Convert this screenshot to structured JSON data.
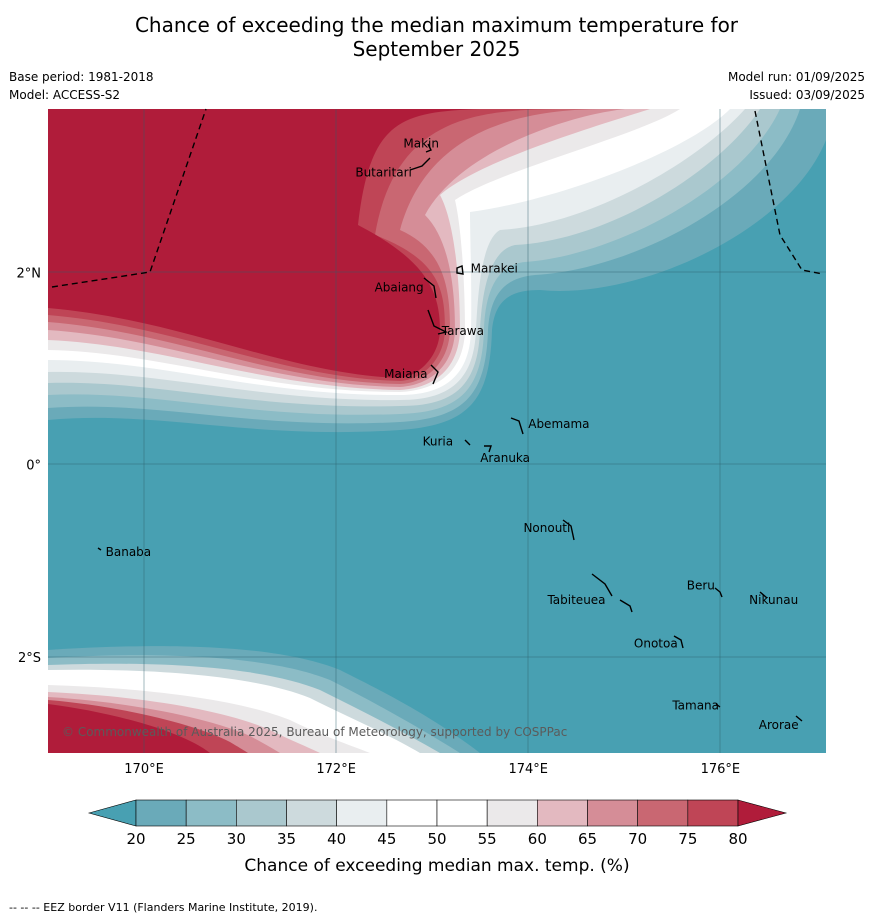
{
  "title": {
    "line1": "Chance of exceeding the median maximum temperature for",
    "line2": "September 2025"
  },
  "meta": {
    "base_period": "Base period: 1981-2018",
    "model": "Model: ACCESS-S2",
    "model_run": "Model run: 01/09/2025",
    "issued": "Issued: 03/09/2025"
  },
  "map": {
    "lon_range": [
      169,
      177.1
    ],
    "lat_range": [
      -3,
      3.7
    ],
    "lon_ticks": [
      {
        "value": 170,
        "label": "170°E"
      },
      {
        "value": 172,
        "label": "172°E"
      },
      {
        "value": 174,
        "label": "174°E"
      },
      {
        "value": 176,
        "label": "176°E"
      }
    ],
    "lat_ticks": [
      {
        "value": 2,
        "label": "2°N"
      },
      {
        "value": 0,
        "label": "0°"
      },
      {
        "value": -2,
        "label": "2°S"
      }
    ],
    "places": [
      {
        "name": "Makin",
        "lon": 172.7,
        "lat": 3.3
      },
      {
        "name": "Butaritari",
        "lon": 172.2,
        "lat": 3.0
      },
      {
        "name": "Marakei",
        "lon": 173.4,
        "lat": 2.0
      },
      {
        "name": "Abaiang",
        "lon": 172.4,
        "lat": 1.8
      },
      {
        "name": "Tarawa",
        "lon": 173.1,
        "lat": 1.35
      },
      {
        "name": "Maiana",
        "lon": 172.5,
        "lat": 0.9
      },
      {
        "name": "Abemama",
        "lon": 174.0,
        "lat": 0.38
      },
      {
        "name": "Kuria",
        "lon": 172.9,
        "lat": 0.2
      },
      {
        "name": "Aranuka",
        "lon": 173.5,
        "lat": 0.03
      },
      {
        "name": "Nonouti",
        "lon": 173.95,
        "lat": -0.7
      },
      {
        "name": "Banaba",
        "lon": 169.6,
        "lat": -0.95
      },
      {
        "name": "Beru",
        "lon": 175.65,
        "lat": -1.3
      },
      {
        "name": "Tabiteuea",
        "lon": 174.2,
        "lat": -1.45
      },
      {
        "name": "Nikunau",
        "lon": 176.3,
        "lat": -1.45
      },
      {
        "name": "Onotoa",
        "lon": 175.1,
        "lat": -1.9
      },
      {
        "name": "Tamana",
        "lon": 175.5,
        "lat": -2.55
      },
      {
        "name": "Arorae",
        "lon": 176.4,
        "lat": -2.75
      }
    ],
    "copyright": "© Commonwealth of Australia 2025, Bureau of Meteorology, supported by COSPPac"
  },
  "colorbar": {
    "ticks": [
      "20",
      "25",
      "30",
      "35",
      "40",
      "45",
      "50",
      "55",
      "60",
      "65",
      "70",
      "75",
      "80"
    ],
    "label": "Chance of exceeding median max. temp. (%)",
    "colors": [
      "#6aaab9",
      "#8cbcc6",
      "#aac8ce",
      "#cddadd",
      "#e9eef0",
      "#ffffff",
      "#ffffff",
      "#ebe9ea",
      "#e3b9c0",
      "#d58d97",
      "#c96772",
      "#bf4556"
    ],
    "under_color": "#48a0b2",
    "over_color": "#b01c3a"
  },
  "footer": "--  --  -- EEZ border V11 (Flanders Marine Institute, 2019)."
}
